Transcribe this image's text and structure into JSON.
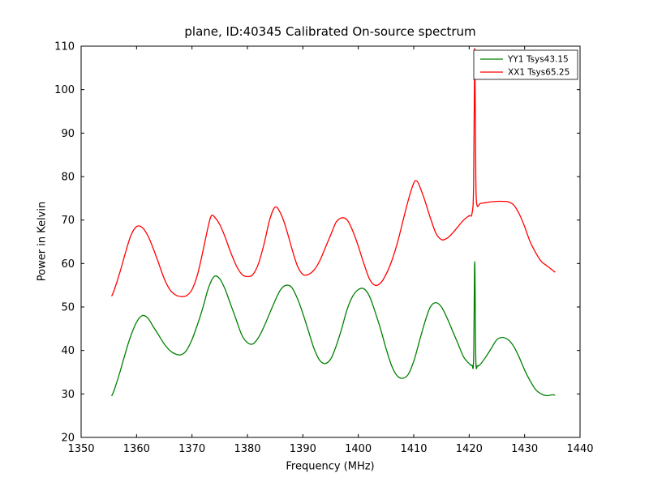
{
  "chart_data": {
    "type": "line",
    "title": "plane, ID:40345 Calibrated On-source spectrum",
    "xlabel": "Frequency (MHz)",
    "ylabel": "Power in Kelvin",
    "xlim": [
      1350,
      1440
    ],
    "ylim": [
      20,
      110
    ],
    "xticks": [
      1350,
      1360,
      1370,
      1380,
      1390,
      1400,
      1410,
      1420,
      1430,
      1440
    ],
    "yticks": [
      20,
      30,
      40,
      50,
      60,
      70,
      80,
      90,
      100,
      110
    ],
    "grid": false,
    "legend_position": "upper right",
    "axis_color": "#000000",
    "background": "#ffffff",
    "series": [
      {
        "name": "YY1 Tsys43.15",
        "color": "#008000",
        "points": [
          [
            1355.5,
            29.5
          ],
          [
            1356,
            31
          ],
          [
            1357,
            35
          ],
          [
            1358,
            39.5
          ],
          [
            1359,
            43.5
          ],
          [
            1360,
            46.5
          ],
          [
            1361,
            48
          ],
          [
            1362,
            47.5
          ],
          [
            1363,
            45.5
          ],
          [
            1364,
            43.5
          ],
          [
            1365,
            41.5
          ],
          [
            1366,
            40
          ],
          [
            1367,
            39.2
          ],
          [
            1368,
            39
          ],
          [
            1369,
            40
          ],
          [
            1370,
            42.5
          ],
          [
            1371,
            46
          ],
          [
            1372,
            50
          ],
          [
            1373,
            54.5
          ],
          [
            1374,
            57
          ],
          [
            1375,
            56.5
          ],
          [
            1376,
            54
          ],
          [
            1377,
            50.5
          ],
          [
            1378,
            47
          ],
          [
            1379,
            43.5
          ],
          [
            1380,
            41.8
          ],
          [
            1381,
            41.5
          ],
          [
            1382,
            43
          ],
          [
            1383,
            45.5
          ],
          [
            1384,
            48.5
          ],
          [
            1385,
            51.5
          ],
          [
            1386,
            54
          ],
          [
            1387,
            55
          ],
          [
            1388,
            54.5
          ],
          [
            1389,
            52
          ],
          [
            1390,
            48.5
          ],
          [
            1391,
            44.5
          ],
          [
            1392,
            40.5
          ],
          [
            1393,
            37.8
          ],
          [
            1394,
            37
          ],
          [
            1395,
            38
          ],
          [
            1396,
            41
          ],
          [
            1397,
            45
          ],
          [
            1398,
            49.5
          ],
          [
            1399,
            52.5
          ],
          [
            1400,
            54
          ],
          [
            1401,
            54.2
          ],
          [
            1402,
            52.5
          ],
          [
            1403,
            49
          ],
          [
            1404,
            45
          ],
          [
            1405,
            40.5
          ],
          [
            1406,
            36.5
          ],
          [
            1407,
            34.2
          ],
          [
            1408,
            33.6
          ],
          [
            1409,
            34.5
          ],
          [
            1410,
            37.5
          ],
          [
            1411,
            42
          ],
          [
            1412,
            46.5
          ],
          [
            1413,
            50
          ],
          [
            1414,
            51
          ],
          [
            1415,
            50
          ],
          [
            1416,
            47.5
          ],
          [
            1417,
            44.5
          ],
          [
            1418,
            41.5
          ],
          [
            1419,
            38.5
          ],
          [
            1420,
            37
          ],
          [
            1420.5,
            36.6
          ],
          [
            1420.8,
            38
          ],
          [
            1421,
            60.5
          ],
          [
            1421.2,
            38
          ],
          [
            1421.5,
            36.5
          ],
          [
            1422,
            36.8
          ],
          [
            1423,
            38.5
          ],
          [
            1424,
            40.5
          ],
          [
            1425,
            42.5
          ],
          [
            1426,
            43
          ],
          [
            1427,
            42.5
          ],
          [
            1428,
            41
          ],
          [
            1429,
            38.5
          ],
          [
            1430,
            35.5
          ],
          [
            1431,
            33
          ],
          [
            1432,
            31
          ],
          [
            1433,
            30
          ],
          [
            1434,
            29.6
          ],
          [
            1435,
            29.8
          ],
          [
            1435.5,
            29.7
          ]
        ]
      },
      {
        "name": "XX1 Tsys65.25",
        "color": "#ff0000",
        "points": [
          [
            1355.5,
            52.5
          ],
          [
            1356,
            54
          ],
          [
            1357,
            58
          ],
          [
            1358,
            62.5
          ],
          [
            1359,
            66.5
          ],
          [
            1360,
            68.5
          ],
          [
            1361,
            68.3
          ],
          [
            1362,
            66.5
          ],
          [
            1363,
            63.5
          ],
          [
            1364,
            60
          ],
          [
            1365,
            56.5
          ],
          [
            1366,
            54
          ],
          [
            1367,
            52.8
          ],
          [
            1368,
            52.4
          ],
          [
            1369,
            52.6
          ],
          [
            1370,
            54
          ],
          [
            1371,
            57.5
          ],
          [
            1372,
            63
          ],
          [
            1373,
            69
          ],
          [
            1373.5,
            71
          ],
          [
            1374,
            70.8
          ],
          [
            1375,
            69
          ],
          [
            1376,
            66
          ],
          [
            1377,
            62.5
          ],
          [
            1378,
            59.5
          ],
          [
            1379,
            57.5
          ],
          [
            1380,
            57
          ],
          [
            1381,
            57.5
          ],
          [
            1382,
            60
          ],
          [
            1383,
            64.5
          ],
          [
            1384,
            70
          ],
          [
            1385,
            73
          ],
          [
            1386,
            71.5
          ],
          [
            1387,
            68
          ],
          [
            1388,
            63.5
          ],
          [
            1389,
            59.5
          ],
          [
            1390,
            57.5
          ],
          [
            1391,
            57.5
          ],
          [
            1392,
            58.5
          ],
          [
            1393,
            60.5
          ],
          [
            1394,
            63.5
          ],
          [
            1395,
            66.5
          ],
          [
            1396,
            69.5
          ],
          [
            1397,
            70.5
          ],
          [
            1398,
            70
          ],
          [
            1399,
            67.5
          ],
          [
            1400,
            64
          ],
          [
            1401,
            60
          ],
          [
            1402,
            56.5
          ],
          [
            1403,
            55
          ],
          [
            1404,
            55.5
          ],
          [
            1405,
            57.5
          ],
          [
            1406,
            60.5
          ],
          [
            1407,
            64.5
          ],
          [
            1408,
            69.5
          ],
          [
            1409,
            74.5
          ],
          [
            1410,
            78.5
          ],
          [
            1410.5,
            79
          ],
          [
            1411,
            78
          ],
          [
            1412,
            74.5
          ],
          [
            1413,
            70.5
          ],
          [
            1414,
            67
          ],
          [
            1415,
            65.5
          ],
          [
            1416,
            65.8
          ],
          [
            1417,
            67
          ],
          [
            1418,
            68.5
          ],
          [
            1419,
            70
          ],
          [
            1420,
            71
          ],
          [
            1420.5,
            71.5
          ],
          [
            1420.8,
            78
          ],
          [
            1421,
            109.5
          ],
          [
            1421.2,
            80
          ],
          [
            1421.4,
            73.5
          ],
          [
            1422,
            73.8
          ],
          [
            1423,
            74
          ],
          [
            1424,
            74.2
          ],
          [
            1425,
            74.3
          ],
          [
            1426,
            74.3
          ],
          [
            1427,
            74.2
          ],
          [
            1428,
            73.5
          ],
          [
            1429,
            71.5
          ],
          [
            1430,
            68.5
          ],
          [
            1431,
            65
          ],
          [
            1432,
            62.5
          ],
          [
            1433,
            60.5
          ],
          [
            1434,
            59.5
          ],
          [
            1435,
            58.5
          ],
          [
            1435.5,
            58
          ]
        ]
      }
    ]
  }
}
